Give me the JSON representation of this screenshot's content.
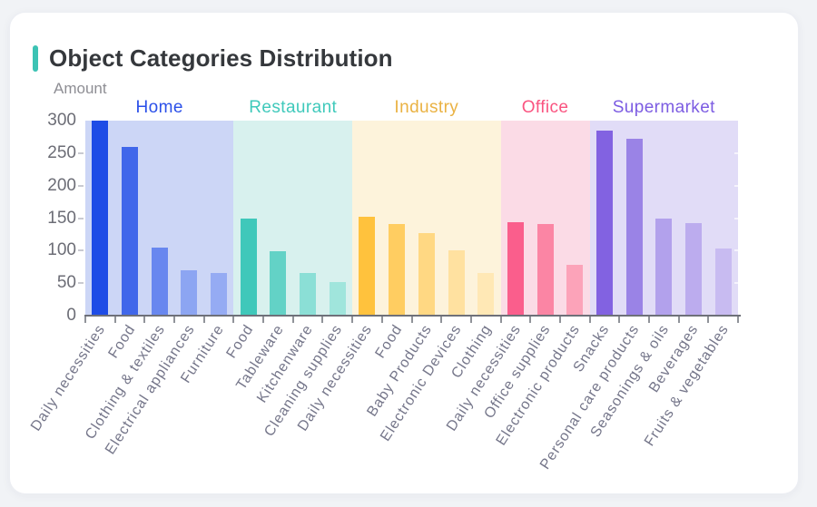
{
  "header": {
    "title": "Object Categories Distribution",
    "accent_color": "#3cc3b4"
  },
  "chart_data": {
    "type": "bar",
    "title": "Object Categories Distribution",
    "xlabel": "",
    "ylabel": "Amount",
    "ylim": [
      0,
      300
    ],
    "yticks": [
      0,
      50,
      100,
      150,
      200,
      250,
      300
    ],
    "grid": false,
    "x_label_rotation_deg": 57,
    "groups": [
      {
        "name": "Home",
        "label_color": "#2b50e9",
        "band_color": "#ccd6f6",
        "categories": [
          "Daily necessities",
          "Food",
          "Clothing & textiles",
          "Electrical appliances",
          "Furniture"
        ],
        "values": [
          300,
          259,
          104,
          70,
          65
        ],
        "bar_colors": [
          "#1e4ce6",
          "#4067ea",
          "#6887ef",
          "#8ca5f2",
          "#95abf3"
        ]
      },
      {
        "name": "Restaurant",
        "label_color": "#3fc9bb",
        "band_color": "#d8f1ee",
        "categories": [
          "Food",
          "Tableware",
          "Kitchenware",
          "Cleaning supplies"
        ],
        "values": [
          150,
          99,
          66,
          52
        ],
        "bar_colors": [
          "#3fc8ba",
          "#63d2c6",
          "#8bdfd6",
          "#a0e5dc"
        ]
      },
      {
        "name": "Industry",
        "label_color": "#eab243",
        "band_color": "#fdf3db",
        "categories": [
          "Daily necessities",
          "Food",
          "Baby Products",
          "Electronic Devices",
          "Clothing"
        ],
        "values": [
          152,
          141,
          127,
          100,
          65
        ],
        "bar_colors": [
          "#ffc23d",
          "#ffcd61",
          "#ffd883",
          "#ffe1a0",
          "#ffe8b5"
        ]
      },
      {
        "name": "Office",
        "label_color": "#fa5480",
        "band_color": "#fbdbe6",
        "categories": [
          "Daily necessities",
          "Office supplies",
          "Electronic products"
        ],
        "values": [
          144,
          141,
          78
        ],
        "bar_colors": [
          "#fa5e8c",
          "#fb85a4",
          "#fca3b9"
        ]
      },
      {
        "name": "Supermarket",
        "label_color": "#7c5ce2",
        "band_color": "#e1dcf7",
        "categories": [
          "Snacks",
          "Personal care products",
          "Seasonings & oils",
          "Beverages",
          "Fruits & vegetables"
        ],
        "values": [
          285,
          272,
          150,
          142,
          103
        ],
        "bar_colors": [
          "#8262e1",
          "#9a83e6",
          "#b2a1ec",
          "#bcacee",
          "#c8bbf1"
        ]
      }
    ]
  }
}
